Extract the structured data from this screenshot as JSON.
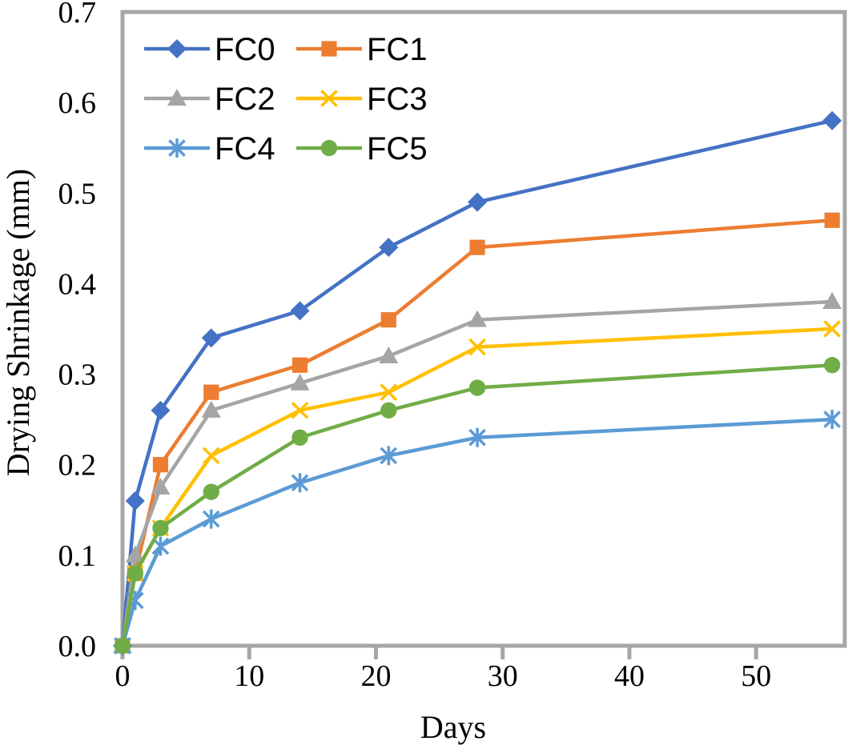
{
  "chart_data": {
    "type": "line",
    "title": "",
    "xlabel": "Days",
    "ylabel": "Drying Shrinkage (mm)",
    "xlim": [
      0,
      57
    ],
    "ylim": [
      0,
      0.7
    ],
    "xticks": [
      "0",
      "10",
      "20",
      "30",
      "40",
      "50"
    ],
    "yticks": [
      "0.0",
      "0.1",
      "0.2",
      "0.3",
      "0.4",
      "0.5",
      "0.6",
      "0.7"
    ],
    "grid": false,
    "legend_position": "top-left",
    "x": [
      0,
      1,
      3,
      7,
      14,
      21,
      28,
      56
    ],
    "series": [
      {
        "name": "FC0",
        "color": "#4472C4",
        "marker": "diamond",
        "values": [
          0,
          0.16,
          0.26,
          0.34,
          0.37,
          0.44,
          0.49,
          0.58
        ]
      },
      {
        "name": "FC1",
        "color": "#ED7D31",
        "marker": "square",
        "values": [
          0,
          0.08,
          0.2,
          0.28,
          0.31,
          0.36,
          0.44,
          0.47
        ]
      },
      {
        "name": "FC2",
        "color": "#A5A5A5",
        "marker": "triangle",
        "values": [
          0,
          0.1,
          0.175,
          0.26,
          0.29,
          0.32,
          0.36,
          0.38
        ]
      },
      {
        "name": "FC3",
        "color": "#FFC000",
        "marker": "x",
        "values": [
          0,
          0.08,
          0.13,
          0.21,
          0.26,
          0.28,
          0.33,
          0.35
        ]
      },
      {
        "name": "FC4",
        "color": "#5B9BD5",
        "marker": "asterisk",
        "values": [
          0,
          0.05,
          0.11,
          0.14,
          0.18,
          0.21,
          0.23,
          0.25
        ]
      },
      {
        "name": "FC5",
        "color": "#70AD47",
        "marker": "circle",
        "values": [
          0,
          0.08,
          0.13,
          0.17,
          0.23,
          0.26,
          0.285,
          0.31
        ]
      }
    ]
  }
}
